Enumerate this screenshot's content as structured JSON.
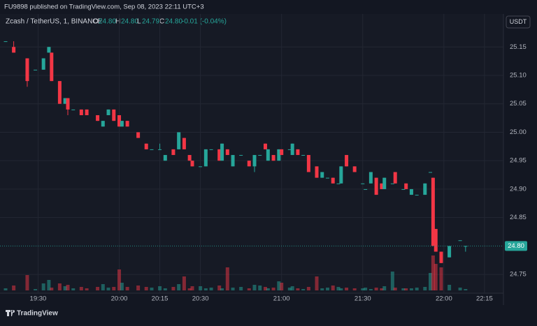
{
  "header": {
    "publisher": "FU9898 published on TradingView.com, Sep 08, 2023 22:11 UTC+3",
    "brand": "TradingView"
  },
  "legend": {
    "symbol": "Zcash / TetherUS, 1, BINANCE",
    "o_label": "O",
    "o": "24.80",
    "h_label": "H",
    "h": "24.80",
    "l_label": "L",
    "l": "24.79",
    "c_label": "C",
    "c": "24.80",
    "change": "-0.01 (-0.04%)"
  },
  "currency_button": "USDT",
  "chart_data": {
    "type": "candlestick",
    "x": [
      "19:18",
      "19:21",
      "19:26",
      "19:29",
      "19:32",
      "19:34",
      "19:35",
      "19:38",
      "19:40",
      "19:41",
      "19:43",
      "19:46",
      "19:48",
      "19:52",
      "19:54",
      "19:56",
      "19:58",
      "20:00",
      "20:01",
      "20:03",
      "20:07",
      "20:10",
      "20:12",
      "20:15",
      "20:17",
      "20:20",
      "20:22",
      "20:24",
      "20:26",
      "20:27",
      "20:30",
      "20:32",
      "20:34",
      "20:37",
      "20:38",
      "20:40",
      "20:42",
      "20:45",
      "20:48",
      "20:50",
      "20:52",
      "20:54",
      "20:55",
      "20:57",
      "20:59",
      "21:00",
      "21:03",
      "21:04",
      "21:06",
      "21:08",
      "21:10",
      "21:13",
      "21:15",
      "21:17",
      "21:19",
      "21:21",
      "21:22",
      "21:24",
      "21:27",
      "21:30",
      "21:31",
      "21:33",
      "21:35",
      "21:37",
      "21:38",
      "21:41",
      "21:42",
      "21:45",
      "21:46",
      "21:48",
      "21:50",
      "21:53",
      "21:55",
      "21:56",
      "21:57",
      "21:59",
      "22:02",
      "22:06",
      "22:08"
    ],
    "open": [
      25.16,
      25.15,
      25.13,
      25.11,
      25.11,
      25.14,
      25.14,
      25.09,
      25.05,
      25.06,
      25.04,
      25.04,
      25.04,
      25.03,
      25.01,
      25.03,
      25.04,
      25.03,
      25.01,
      25.02,
      25.0,
      24.98,
      24.97,
      24.97,
      24.95,
      24.97,
      24.97,
      24.99,
      24.96,
      24.95,
      24.94,
      24.94,
      24.97,
      24.97,
      24.95,
      24.97,
      24.94,
      24.96,
      24.95,
      24.94,
      24.96,
      24.98,
      24.95,
      24.96,
      24.95,
      24.97,
      24.97,
      24.96,
      24.97,
      24.96,
      24.96,
      24.94,
      24.92,
      24.92,
      24.92,
      24.91,
      24.91,
      24.96,
      24.94,
      24.91,
      24.9,
      24.91,
      24.92,
      24.91,
      24.9,
      24.91,
      24.93,
      24.9,
      24.91,
      24.89,
      24.89,
      24.89,
      24.93,
      24.92,
      24.83,
      24.79,
      24.78,
      24.81,
      24.8
    ],
    "high": [
      25.16,
      25.16,
      25.13,
      25.11,
      25.13,
      25.15,
      25.14,
      25.09,
      25.06,
      25.06,
      25.04,
      25.04,
      25.04,
      25.03,
      25.02,
      25.04,
      25.04,
      25.03,
      25.02,
      25.02,
      25.0,
      24.98,
      24.97,
      24.98,
      24.96,
      24.97,
      25.0,
      24.99,
      24.96,
      24.95,
      24.94,
      24.97,
      24.97,
      24.97,
      24.98,
      24.97,
      24.96,
      24.96,
      24.95,
      24.96,
      24.96,
      24.98,
      24.97,
      24.96,
      24.97,
      24.97,
      24.97,
      24.98,
      24.97,
      24.96,
      24.96,
      24.94,
      24.93,
      24.92,
      24.92,
      24.91,
      24.94,
      24.96,
      24.94,
      24.91,
      24.9,
      24.93,
      24.92,
      24.91,
      24.92,
      24.91,
      24.93,
      24.9,
      24.91,
      24.9,
      24.89,
      24.91,
      24.93,
      24.92,
      24.83,
      24.79,
      24.8,
      24.81,
      24.8
    ],
    "low": [
      25.16,
      25.14,
      25.08,
      25.11,
      25.11,
      25.14,
      25.09,
      25.05,
      25.05,
      25.03,
      25.04,
      25.03,
      25.03,
      25.02,
      25.01,
      25.03,
      25.02,
      25.01,
      25.01,
      25.01,
      24.99,
      24.97,
      24.97,
      24.97,
      24.95,
      24.96,
      24.97,
      24.97,
      24.95,
      24.94,
      24.94,
      24.94,
      24.97,
      24.95,
      24.95,
      24.96,
      24.94,
      24.96,
      24.94,
      24.93,
      24.96,
      24.97,
      24.95,
      24.95,
      24.95,
      24.96,
      24.97,
      24.96,
      24.96,
      24.96,
      24.93,
      24.92,
      24.92,
      24.92,
      24.91,
      24.91,
      24.91,
      24.94,
      24.93,
      24.91,
      24.9,
      24.91,
      24.89,
      24.9,
      24.9,
      24.91,
      24.91,
      24.9,
      24.9,
      24.89,
      24.89,
      24.89,
      24.93,
      24.8,
      24.79,
      24.77,
      24.78,
      24.81,
      24.79
    ],
    "close": [
      25.16,
      25.14,
      25.09,
      25.11,
      25.13,
      25.15,
      25.09,
      25.05,
      25.06,
      25.04,
      25.04,
      25.03,
      25.03,
      25.02,
      25.02,
      25.04,
      25.02,
      25.01,
      25.02,
      25.01,
      24.99,
      24.97,
      24.97,
      24.97,
      24.96,
      24.96,
      25.0,
      24.97,
      24.95,
      24.94,
      24.94,
      24.97,
      24.97,
      24.95,
      24.98,
      24.96,
      24.96,
      24.96,
      24.94,
      24.96,
      24.96,
      24.97,
      24.97,
      24.95,
      24.97,
      24.96,
      24.97,
      24.98,
      24.96,
      24.96,
      24.93,
      24.92,
      24.93,
      24.92,
      24.91,
      24.91,
      24.94,
      24.94,
      24.93,
      24.91,
      24.9,
      24.93,
      24.89,
      24.9,
      24.92,
      24.91,
      24.91,
      24.9,
      24.9,
      24.9,
      24.89,
      24.91,
      24.93,
      24.8,
      24.79,
      24.77,
      24.8,
      24.81,
      24.8
    ],
    "volume": [
      3,
      7,
      22,
      2,
      10,
      15,
      4,
      10,
      6,
      8,
      3,
      5,
      3,
      5,
      9,
      4,
      5,
      30,
      11,
      5,
      7,
      5,
      4,
      6,
      3,
      5,
      9,
      20,
      3,
      6,
      6,
      3,
      4,
      7,
      3,
      33,
      4,
      5,
      3,
      8,
      7,
      5,
      3,
      4,
      13,
      11,
      4,
      6,
      3,
      2,
      5,
      20,
      3,
      4,
      7,
      5,
      3,
      4,
      3,
      3,
      4,
      2,
      4,
      3,
      6,
      27,
      4,
      3,
      3,
      3,
      4,
      5,
      25,
      50,
      38,
      33,
      8,
      4,
      2
    ],
    "up_color": "#26a69a",
    "down_color": "#f23645",
    "xlim": [
      "19:18",
      "22:22"
    ],
    "xticks": [
      "19:30",
      "20:00",
      "20:15",
      "20:30",
      "21:00",
      "21:30",
      "22:00",
      "22:15"
    ],
    "ylim": [
      24.717,
      25.208
    ],
    "yticks": [
      {
        "value": 25.15,
        "label": "25.15"
      },
      {
        "value": 25.1,
        "label": "25.10"
      },
      {
        "value": 25.05,
        "label": "25.05"
      },
      {
        "value": 25.0,
        "label": "25.00"
      },
      {
        "value": 24.95,
        "label": "24.95"
      },
      {
        "value": 24.9,
        "label": "24.90"
      },
      {
        "value": 24.85,
        "label": "24.85"
      },
      {
        "value": 24.75,
        "label": "24.75"
      }
    ],
    "last_price": {
      "value": 24.8,
      "label": "24.80"
    },
    "grid": true
  }
}
